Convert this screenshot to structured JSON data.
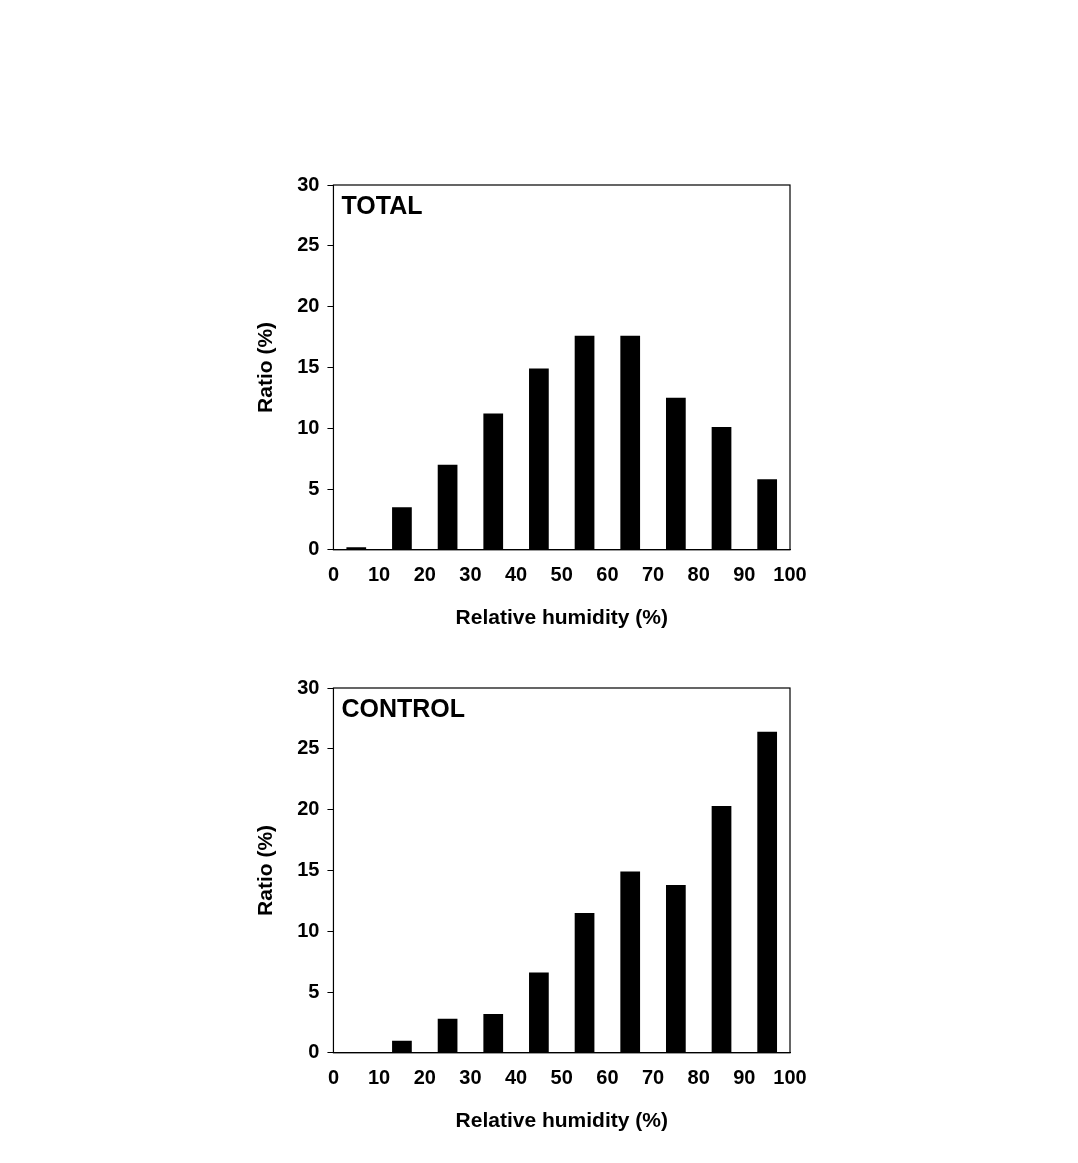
{
  "chart_data": [
    {
      "type": "histogram",
      "title": "TOTAL",
      "bins": [
        0,
        10,
        20,
        30,
        40,
        50,
        60,
        70,
        80,
        90,
        100
      ],
      "values": [
        0.2,
        3.5,
        7.0,
        11.2,
        14.9,
        17.6,
        17.6,
        12.5,
        10.1,
        5.8
      ],
      "color": "#000000",
      "x_label": "Relative humidity (%)",
      "y_label": "Ratio (%)",
      "xlim": [
        0,
        100
      ],
      "xticks": [
        0,
        10,
        20,
        30,
        40,
        50,
        60,
        70,
        80,
        90,
        100
      ],
      "ylim": [
        0,
        30
      ],
      "yticks": [
        0,
        5,
        10,
        15,
        20,
        25,
        30
      ],
      "grid": false
    },
    {
      "type": "histogram",
      "title": "CONTROL",
      "bins": [
        0,
        10,
        20,
        30,
        40,
        50,
        60,
        70,
        80,
        90,
        100
      ],
      "values": [
        0,
        1.0,
        2.8,
        3.2,
        6.6,
        11.5,
        14.9,
        13.8,
        20.3,
        26.4
      ],
      "color": "#000000",
      "x_label": "Relative humidity (%)",
      "y_label": "Ratio (%)",
      "xlim": [
        0,
        100
      ],
      "xticks": [
        0,
        10,
        20,
        30,
        40,
        50,
        60,
        70,
        80,
        90,
        100
      ],
      "ylim": [
        0,
        30
      ],
      "yticks": [
        0,
        5,
        10,
        15,
        20,
        25,
        30
      ],
      "grid": false
    }
  ]
}
